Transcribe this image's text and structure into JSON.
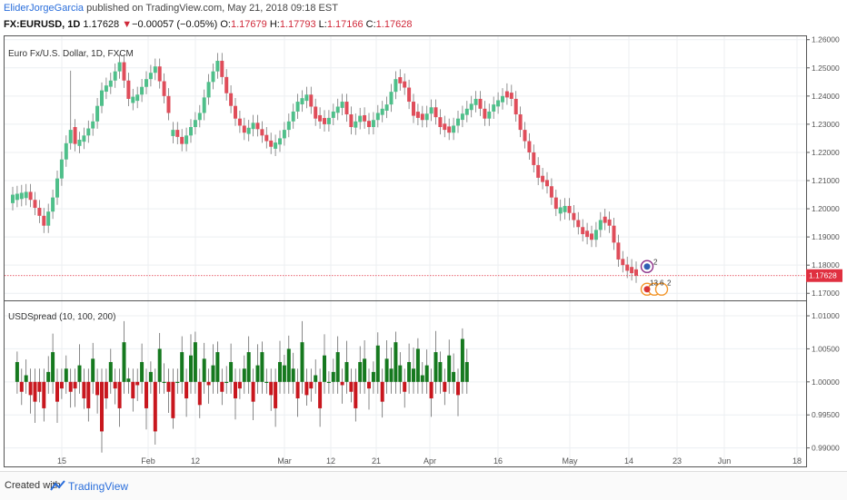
{
  "header": {
    "author": "EliderJorgeGarcia",
    "published": "published on TradingView.com, May 21, 2018 09:18 EST",
    "symbol": "FX:EURUSD, 1D",
    "last": "1.17628",
    "change": "−0.00057 (−0.05%)",
    "ohlc_o_label": "O:",
    "ohlc_o": "1.17679",
    "ohlc_h_label": "H:",
    "ohlc_h": "1.17793",
    "ohlc_l_label": "L:",
    "ohlc_l": "1.17166",
    "ohlc_c_label": "C:",
    "ohlc_c": "1.17628",
    "down_arrow": "▼"
  },
  "footer": {
    "created": "Created with",
    "brand": "TradingView"
  },
  "colors": {
    "up": "#4fbf8a",
    "down": "#df4d5a",
    "ind_up": "#16791f",
    "ind_down": "#c8171e",
    "price_line": "#e03040",
    "grid": "#eceff2"
  },
  "chart_data": [
    {
      "type": "candlestick",
      "title": "Euro Fx/U.S. Dollar, 1D, FXCM",
      "x_labels": [
        "15",
        "Feb",
        "12",
        "Mar",
        "12",
        "21",
        "Apr",
        "16",
        "May",
        "14",
        "23",
        "Jun",
        "18"
      ],
      "y_ticks": [
        "1.26000",
        "1.25000",
        "1.24000",
        "1.23000",
        "1.22000",
        "1.21000",
        "1.20000",
        "1.19000",
        "1.18000",
        "1.17000"
      ],
      "ylim": [
        1.1675,
        1.2612
      ],
      "last_price_label": "1.17628",
      "last_price": 1.17628,
      "event_badges": [
        "2",
        "13",
        "6",
        "2"
      ],
      "close_path": [
        [
          0,
          1.205
        ],
        [
          3,
          1.206
        ],
        [
          6,
          1.1975
        ],
        [
          7,
          1.194
        ],
        [
          9,
          1.204
        ],
        [
          11,
          1.2175
        ],
        [
          13,
          1.229
        ],
        [
          14,
          1.223
        ],
        [
          16,
          1.226
        ],
        [
          18,
          1.231
        ],
        [
          20,
          1.242
        ],
        [
          22,
          1.2455
        ],
        [
          24,
          1.252
        ],
        [
          26,
          1.239
        ],
        [
          28,
          1.2405
        ],
        [
          30,
          1.246
        ],
        [
          32,
          1.2505
        ],
        [
          34,
          1.24
        ],
        [
          36,
          1.228
        ],
        [
          38,
          1.223
        ],
        [
          40,
          1.229
        ],
        [
          42,
          1.234
        ],
        [
          44,
          1.245
        ],
        [
          46,
          1.2525
        ],
        [
          48,
          1.241
        ],
        [
          50,
          1.232
        ],
        [
          52,
          1.227
        ],
        [
          54,
          1.2305
        ],
        [
          56,
          1.226
        ],
        [
          58,
          1.222
        ],
        [
          60,
          1.225
        ],
        [
          62,
          1.231
        ],
        [
          64,
          1.238
        ],
        [
          66,
          1.2405
        ],
        [
          68,
          1.232
        ],
        [
          70,
          1.23
        ],
        [
          72,
          1.2345
        ],
        [
          74,
          1.238
        ],
        [
          76,
          1.229
        ],
        [
          78,
          1.233
        ],
        [
          80,
          1.229
        ],
        [
          82,
          1.234
        ],
        [
          84,
          1.237
        ],
        [
          86,
          1.246
        ],
        [
          88,
          1.243
        ],
        [
          90,
          1.233
        ],
        [
          92,
          1.2315
        ],
        [
          94,
          1.236
        ],
        [
          96,
          1.229
        ],
        [
          98,
          1.227
        ],
        [
          100,
          1.232
        ],
        [
          102,
          1.2355
        ],
        [
          104,
          1.239
        ],
        [
          106,
          1.232
        ],
        [
          108,
          1.237
        ],
        [
          110,
          1.24
        ],
        [
          112,
          1.239
        ],
        [
          114,
          1.228
        ],
        [
          116,
          1.22
        ],
        [
          118,
          1.211
        ],
        [
          120,
          1.208
        ],
        [
          122,
          1.2
        ],
        [
          124,
          1.201
        ],
        [
          126,
          1.196
        ],
        [
          128,
          1.191
        ],
        [
          130,
          1.189
        ],
        [
          132,
          1.196
        ],
        [
          134,
          1.194
        ],
        [
          136,
          1.182
        ],
        [
          138,
          1.178
        ],
        [
          140,
          1.1763
        ]
      ],
      "up_bars": [
        0,
        9,
        13,
        20,
        30,
        32,
        36,
        40,
        42,
        44,
        46,
        62,
        64,
        66,
        72,
        74,
        78,
        82,
        84,
        86,
        100,
        102,
        104,
        108,
        110,
        124,
        132
      ],
      "gap": {
        "start_index": 13,
        "wick_high": 1.249,
        "wick_low": 1.221
      }
    },
    {
      "type": "bar",
      "title": "USDSpread (10, 100, 200)",
      "x_labels": [
        "15",
        "Feb",
        "12",
        "Mar",
        "12",
        "21",
        "Apr",
        "16",
        "May",
        "14",
        "23",
        "Jun",
        "18"
      ],
      "y_ticks": [
        "1.01000",
        "1.00500",
        "1.00000",
        "0.99500",
        "0.99000"
      ],
      "ylim": [
        0.9872,
        1.0122
      ],
      "baseline": 1.0,
      "values": [
        1.003,
        0.9985,
        1.001,
        0.998,
        0.997,
        0.9985,
        0.996,
        1.0015,
        1.0045,
        0.997,
        0.999,
        1.002,
        0.9985,
        0.999,
        1.0025,
        0.9975,
        0.996,
        1.0035,
        0.998,
        0.9925,
        0.9975,
        1.003,
        0.999,
        0.996,
        1.006,
        1.0005,
        0.9975,
        0.9995,
        1.003,
        0.996,
        1.0015,
        0.9925,
        1.005,
        1.0,
        0.9985,
        0.9945,
        1.0,
        1.0045,
        0.9975,
        1.004,
        1.006,
        0.9965,
        1.0035,
        0.9995,
        1.0025,
        1.0045,
        0.9985,
        1.0,
        1.003,
        0.9975,
        0.999,
        1.002,
        1.0045,
        0.997,
        1.0025,
        1.0045,
        1.0,
        0.998,
        0.996,
        1.003,
        1.0025,
        1.005,
        1.002,
        0.9975,
        1.006,
        0.998,
        0.999,
        1.001,
        0.996,
        1.004,
        1.0,
        1.0015,
        1.0045,
        0.9995,
        1.003,
        0.9985,
        0.996,
        1.003,
        1.0035,
        0.999,
        1.0015,
        1.0055,
        0.997,
        1.0035,
        1.002,
        1.006,
        1.0025,
        0.9985,
        1.003,
        1.002,
        1.005,
        1.001,
        1.0025,
        0.9975,
        1.0045,
        1.003,
        0.9985,
        1.004,
        1.0015,
        0.998,
        1.0065,
        1.003
      ]
    }
  ]
}
